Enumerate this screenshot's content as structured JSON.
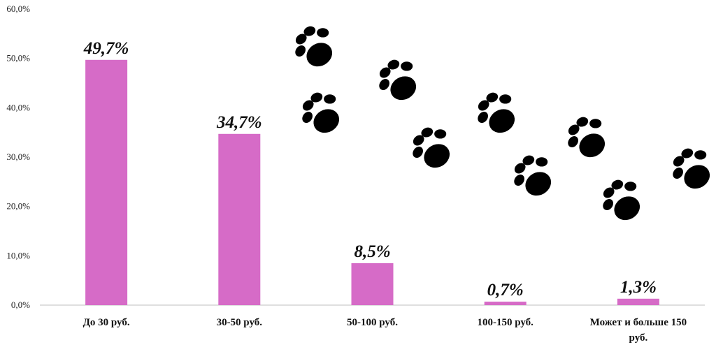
{
  "chart_data": {
    "type": "bar",
    "categories": [
      "До 30 руб.",
      "30-50 руб.",
      "50-100 руб.",
      "100-150 руб.",
      [
        "Может и больше 150",
        "руб."
      ]
    ],
    "values": [
      49.7,
      34.7,
      8.5,
      0.7,
      1.3
    ],
    "data_labels": [
      "49,7%",
      "34,7%",
      "8,5%",
      "0,7%",
      "1,3%"
    ],
    "y_ticks": [
      "0,0%",
      "10,0%",
      "20,0%",
      "30,0%",
      "40,0%",
      "50,0%",
      "60,0%"
    ],
    "ylim": [
      0,
      60
    ],
    "grid": false,
    "bar_color": "#d66bc7",
    "decoration": "paw-print-icons"
  }
}
